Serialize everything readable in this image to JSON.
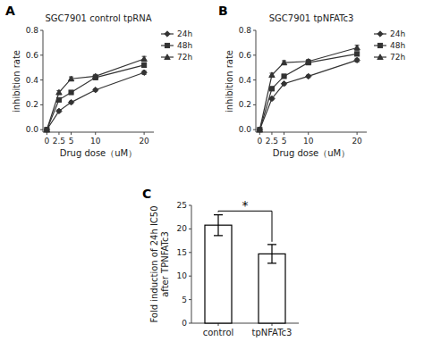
{
  "chart_data": [
    {
      "type": "line",
      "title": "SGC7901 control tpRNA",
      "x_label": "Drug dose（uM）",
      "y_label": "inhibition rate",
      "x": [
        0,
        2.5,
        5,
        10,
        20
      ],
      "xlim": [
        -0.8,
        22
      ],
      "xticks": [
        0,
        2.5,
        5,
        10,
        20
      ],
      "ylim": [
        -0.02,
        0.8
      ],
      "yticks": [
        {
          "value": 0,
          "label": "0.0"
        },
        0.2,
        0.4,
        0.6,
        0.8
      ],
      "grid": false,
      "legend": "upper right",
      "annotations": [
        {
          "text": "A"
        }
      ],
      "series": [
        {
          "name": "24h",
          "color": "#333333",
          "marker": "diamond",
          "values": [
            0.0,
            0.15,
            0.22,
            0.32,
            0.46
          ],
          "errors": [
            0.0,
            0.01,
            0.01,
            0.01,
            0.015
          ]
        },
        {
          "name": "48h",
          "color": "#333333",
          "marker": "square",
          "values": [
            0.0,
            0.24,
            0.3,
            0.42,
            0.52
          ],
          "errors": [
            0.0,
            0.01,
            0.01,
            0.015,
            0.015
          ]
        },
        {
          "name": "72h",
          "color": "#333333",
          "marker": "triangle",
          "values": [
            0.0,
            0.3,
            0.41,
            0.43,
            0.57
          ],
          "errors": [
            0.0,
            0.015,
            0.015,
            0.015,
            0.02
          ]
        }
      ]
    },
    {
      "type": "line",
      "title": "SGC7901 tpNFATc3",
      "x_label": "Drug dose（uM）",
      "y_label": "inhibition rate",
      "x": [
        0,
        2.5,
        5,
        10,
        20
      ],
      "xlim": [
        -0.8,
        22
      ],
      "xticks": [
        0,
        2.5,
        5,
        10,
        20
      ],
      "ylim": [
        -0.02,
        0.8
      ],
      "yticks": [
        {
          "value": 0,
          "label": "0.0"
        },
        0.2,
        0.4,
        0.6,
        0.8
      ],
      "grid": false,
      "legend": "upper right",
      "annotations": [
        {
          "text": "B"
        }
      ],
      "series": [
        {
          "name": "24h",
          "color": "#333333",
          "marker": "diamond",
          "values": [
            0.0,
            0.25,
            0.37,
            0.43,
            0.56
          ],
          "errors": [
            0.0,
            0.01,
            0.01,
            0.01,
            0.015
          ]
        },
        {
          "name": "48h",
          "color": "#333333",
          "marker": "square",
          "values": [
            0.0,
            0.33,
            0.43,
            0.54,
            0.61
          ],
          "errors": [
            0.0,
            0.01,
            0.01,
            0.015,
            0.015
          ]
        },
        {
          "name": "72h",
          "color": "#333333",
          "marker": "triangle",
          "values": [
            0.0,
            0.44,
            0.54,
            0.55,
            0.66
          ],
          "errors": [
            0.0,
            0.015,
            0.015,
            0.015,
            0.02
          ]
        }
      ]
    },
    {
      "type": "bar",
      "categories": [
        "control",
        "tpNFATc3"
      ],
      "values": [
        20.8,
        14.7
      ],
      "errors": [
        2.2,
        2.0
      ],
      "color": "white",
      "y_label": "Fold induction of 24h IC50\nafter TPNFATc3",
      "ylim": [
        0,
        25
      ],
      "yticks": [
        0,
        5,
        10,
        15,
        20,
        25
      ],
      "grid": false,
      "annotations": [
        {
          "text": "C"
        },
        {
          "text": "*",
          "x": [
            "control",
            "tpNFATc3"
          ],
          "y": 23.8
        }
      ]
    }
  ]
}
